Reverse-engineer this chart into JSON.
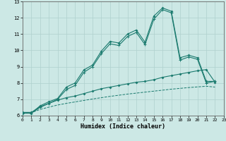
{
  "xlabel": "Humidex (Indice chaleur)",
  "xlim": [
    0,
    23
  ],
  "ylim": [
    6,
    13
  ],
  "yticks": [
    6,
    7,
    8,
    9,
    10,
    11,
    12,
    13
  ],
  "xticks": [
    0,
    1,
    2,
    3,
    4,
    5,
    6,
    7,
    8,
    9,
    10,
    11,
    12,
    13,
    14,
    15,
    16,
    17,
    18,
    19,
    20,
    21,
    22,
    23
  ],
  "bg_color": "#cce8e5",
  "grid_color": "#afd0cd",
  "line_color": "#1a7a6e",
  "line1_y": [
    6.15,
    6.15,
    6.6,
    6.85,
    7.05,
    7.75,
    8.0,
    8.8,
    9.1,
    9.95,
    10.55,
    10.45,
    11.0,
    11.25,
    10.5,
    12.1,
    12.6,
    12.4,
    9.55,
    9.7,
    9.55,
    8.1,
    8.1
  ],
  "line2_y": [
    6.15,
    6.15,
    6.5,
    6.75,
    7.0,
    7.6,
    7.85,
    8.65,
    9.0,
    9.8,
    10.4,
    10.3,
    10.85,
    11.1,
    10.35,
    11.9,
    12.5,
    12.3,
    9.4,
    9.6,
    9.45,
    8.0,
    8.1
  ],
  "line3_y": [
    6.2,
    6.2,
    6.55,
    6.75,
    6.95,
    7.1,
    7.2,
    7.35,
    7.5,
    7.65,
    7.75,
    7.85,
    7.95,
    8.05,
    8.1,
    8.2,
    8.35,
    8.45,
    8.55,
    8.65,
    8.75,
    8.82,
    8.05
  ],
  "line4_y": [
    6.18,
    6.18,
    6.38,
    6.52,
    6.65,
    6.75,
    6.84,
    6.93,
    7.02,
    7.1,
    7.18,
    7.25,
    7.32,
    7.38,
    7.44,
    7.5,
    7.56,
    7.62,
    7.67,
    7.72,
    7.76,
    7.8,
    7.75
  ]
}
